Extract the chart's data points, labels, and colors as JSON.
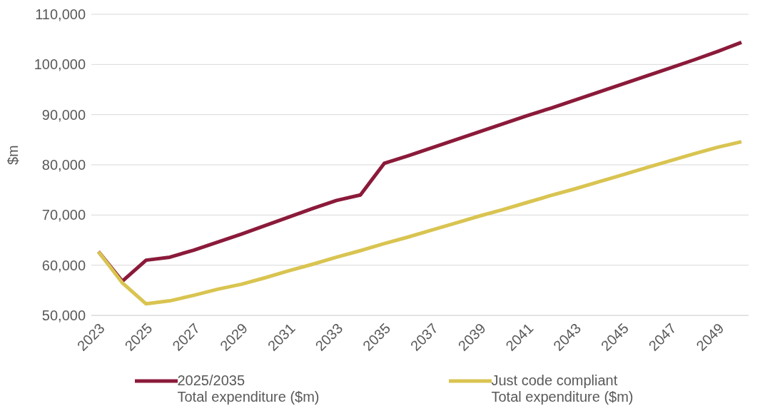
{
  "chart_data": {
    "type": "line",
    "ylabel": "$m",
    "categories": [
      "2023",
      null,
      "2025",
      null,
      "2027",
      null,
      "2029",
      null,
      "2031",
      null,
      "2033",
      null,
      "2035",
      null,
      "2037",
      null,
      "2039",
      null,
      "2041",
      null,
      "2043",
      null,
      "2045",
      null,
      "2047",
      null,
      "2049",
      null
    ],
    "series": [
      {
        "name": "2025/2035\nTotal expenditure ($m)",
        "color": "#8b1a3a",
        "values": [
          62700,
          56800,
          61000,
          61600,
          63000,
          64600,
          66200,
          67900,
          69600,
          71300,
          72900,
          74000,
          80300,
          81800,
          83400,
          85000,
          86600,
          88200,
          89800,
          91300,
          92900,
          94500,
          96100,
          97700,
          99300,
          100900,
          102600,
          104400
        ]
      },
      {
        "name": "Just code compliant\nTotal expenditure ($m)",
        "color": "#d9c451",
        "values": [
          62700,
          56500,
          52300,
          52900,
          54000,
          55200,
          56200,
          57500,
          58900,
          60200,
          61600,
          62900,
          64300,
          65600,
          67000,
          68400,
          69800,
          71100,
          72500,
          73900,
          75200,
          76600,
          78000,
          79400,
          80800,
          82200,
          83500,
          84600
        ]
      }
    ],
    "ylim": [
      50000,
      110000
    ],
    "yticks": [
      {
        "value": 50000,
        "label": "50,000"
      },
      {
        "value": 60000,
        "label": "60,000"
      },
      {
        "value": 70000,
        "label": "70,000"
      },
      {
        "value": 80000,
        "label": "80,000"
      },
      {
        "value": 90000,
        "label": "90,000"
      },
      {
        "value": 100000,
        "label": "100,000"
      },
      {
        "value": 110000,
        "label": "110,000"
      }
    ],
    "grid": "y",
    "legend": "bottom",
    "marker": "none",
    "line_style": "solid"
  }
}
